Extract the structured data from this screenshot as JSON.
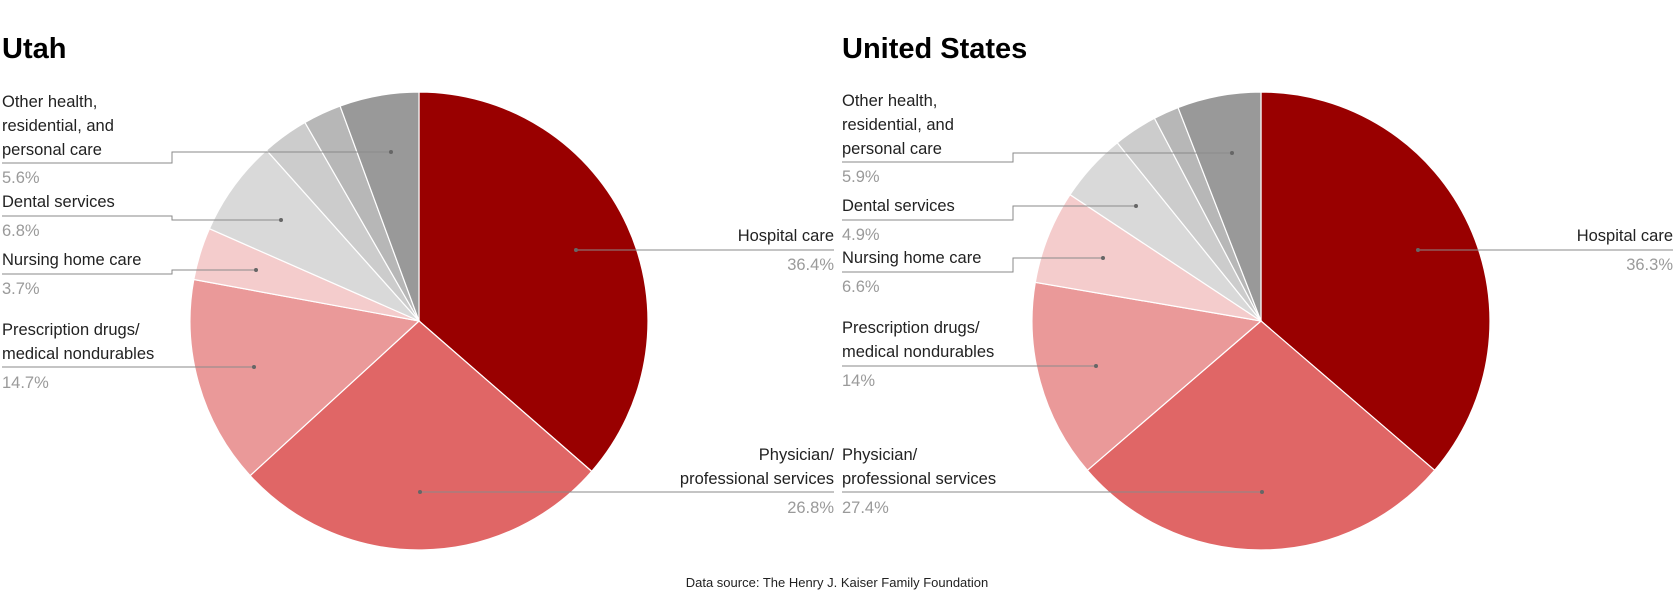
{
  "chart_data": [
    {
      "type": "pie",
      "title": "Utah",
      "slices": [
        {
          "label": "Hospital care",
          "value": 36.4,
          "display": "36.4%",
          "color": "#990000"
        },
        {
          "label": "Physician/ professional services",
          "value": 26.8,
          "display": "26.8%",
          "color": "#e06666"
        },
        {
          "label": "Prescription drugs/ medical nondurables",
          "value": 14.7,
          "display": "14.7%",
          "color": "#ea9999"
        },
        {
          "label": "Nursing home care",
          "value": 3.7,
          "display": "3.7%",
          "color": "#f4cccc"
        },
        {
          "label": "Dental services",
          "value": 6.8,
          "display": "6.8%",
          "color": "#d9d9d9"
        },
        {
          "label": "",
          "value": 3.3,
          "display": "",
          "color": "#cccccc"
        },
        {
          "label": "",
          "value": 2.7,
          "display": "",
          "color": "#b7b7b7"
        },
        {
          "label": "Other health, residential, and personal care",
          "value": 5.6,
          "display": "5.6%",
          "color": "#999999"
        }
      ]
    },
    {
      "type": "pie",
      "title": "United States",
      "slices": [
        {
          "label": "Hospital care",
          "value": 36.3,
          "display": "36.3%",
          "color": "#990000"
        },
        {
          "label": "Physician/ professional services",
          "value": 27.4,
          "display": "27.4%",
          "color": "#e06666"
        },
        {
          "label": "Prescription drugs/ medical nondurables",
          "value": 14,
          "display": "14%",
          "color": "#ea9999"
        },
        {
          "label": "Nursing home care",
          "value": 6.6,
          "display": "6.6%",
          "color": "#f4cccc"
        },
        {
          "label": "Dental services",
          "value": 4.9,
          "display": "4.9%",
          "color": "#d9d9d9"
        },
        {
          "label": "",
          "value": 3.1,
          "display": "",
          "color": "#cccccc"
        },
        {
          "label": "",
          "value": 1.8,
          "display": "",
          "color": "#b7b7b7"
        },
        {
          "label": "Other health, residential, and personal care",
          "value": 5.9,
          "display": "5.9%",
          "color": "#999999"
        }
      ]
    }
  ],
  "labels": {
    "utah": {
      "title": "Utah",
      "hospital": {
        "lines": [
          "Hospital care"
        ],
        "pct": "36.4%"
      },
      "physician": {
        "lines": [
          "Physician/",
          "professional services"
        ],
        "pct": "26.8%"
      },
      "drugs": {
        "lines": [
          "Prescription drugs/",
          "medical nondurables"
        ],
        "pct": "14.7%"
      },
      "nursing": {
        "lines": [
          "Nursing home care"
        ],
        "pct": "3.7%"
      },
      "dental": {
        "lines": [
          "Dental services"
        ],
        "pct": "6.8%"
      },
      "other": {
        "lines": [
          "Other health,",
          "residential, and",
          "personal care"
        ],
        "pct": "5.6%"
      }
    },
    "us": {
      "title": "United States",
      "hospital": {
        "lines": [
          "Hospital care"
        ],
        "pct": "36.3%"
      },
      "physician": {
        "lines": [
          "Physician/",
          "professional services"
        ],
        "pct": "27.4%"
      },
      "drugs": {
        "lines": [
          "Prescription drugs/",
          "medical nondurables"
        ],
        "pct": "14%"
      },
      "nursing": {
        "lines": [
          "Nursing home care"
        ],
        "pct": "6.6%"
      },
      "dental": {
        "lines": [
          "Dental services"
        ],
        "pct": "4.9%"
      },
      "other": {
        "lines": [
          "Other health,",
          "residential, and",
          "personal care"
        ],
        "pct": "5.9%"
      }
    }
  },
  "source": "Data source: The Henry J. Kaiser Family Foundation"
}
